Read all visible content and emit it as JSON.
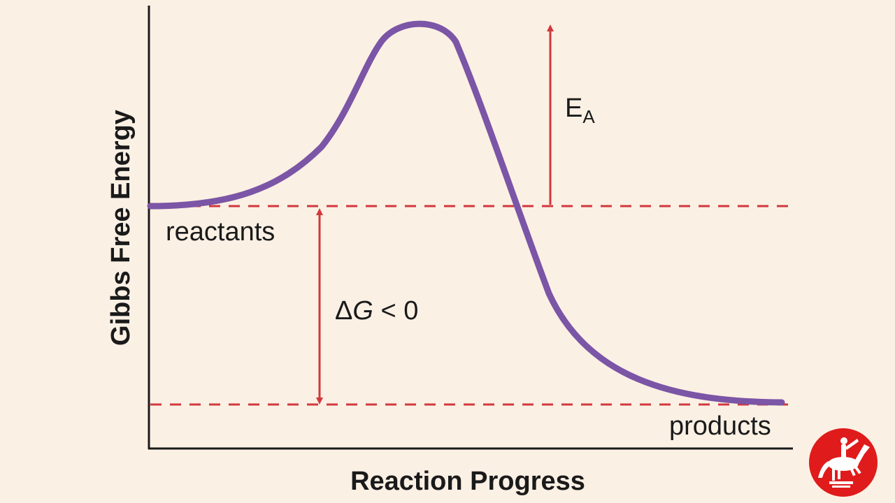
{
  "diagram": {
    "ylabel": "Gibbs Free Energy",
    "xlabel": "Reaction Progress",
    "reactants_label": "reactants",
    "products_label": "products",
    "activation_energy": {
      "symbol": "E",
      "subscript": "A"
    },
    "delta_g": {
      "symbol": "Δ",
      "variable": "G",
      "relation": " < 0"
    }
  },
  "colors": {
    "background": "#fbf0e4",
    "curve": "#7b55a6",
    "arrows": "#d1383d",
    "axes": "#1a1a1a",
    "logo": "#e01b1b"
  },
  "logo": {
    "icon": "horse-rider-icon"
  }
}
